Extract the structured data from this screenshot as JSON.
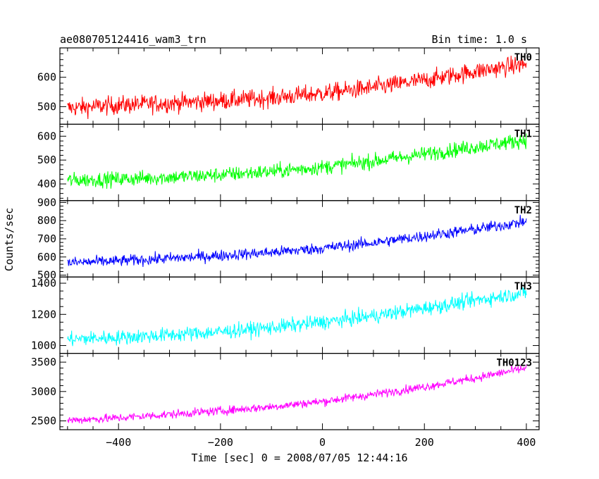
{
  "header": {
    "left": "ae080705124416_wam3_trn",
    "right": "Bin time: 1.0 s"
  },
  "colors": {
    "TH0": "#ff0000",
    "TH1": "#00ff00",
    "TH2": "#0000ff",
    "TH3": "#00ffff",
    "TH0123": "#ff00ff"
  },
  "chart_data": {
    "type": "line",
    "title": "ae080705124416_wam3_trn",
    "subtitle": "Bin time: 1.0 s",
    "xlabel": "Time [sec] 0 = 2008/07/05 12:44:16",
    "ylabel": "Counts/sec",
    "xlim": [
      -515,
      425
    ],
    "x_range": [
      -500,
      400
    ],
    "bin_time": 1.0,
    "xticks": [
      -400,
      -200,
      0,
      200,
      400
    ],
    "xtick_labels": [
      "−400",
      "−200",
      "0",
      "200",
      "400"
    ],
    "grid": false,
    "panels": [
      {
        "name": "TH0",
        "color": "#ff0000",
        "ylim": [
          440,
          700
        ],
        "yticks": [
          500,
          600
        ],
        "x": [
          -500,
          -400,
          -300,
          -200,
          -100,
          0,
          100,
          200,
          300,
          400
        ],
        "y": [
          495,
          505,
          512,
          520,
          530,
          545,
          565,
          590,
          620,
          645
        ],
        "noise": 30
      },
      {
        "name": "TH1",
        "color": "#00ff00",
        "ylim": [
          330,
          650
        ],
        "yticks": [
          400,
          500,
          600
        ],
        "x": [
          -500,
          -400,
          -300,
          -200,
          -100,
          0,
          100,
          200,
          300,
          400
        ],
        "y": [
          415,
          420,
          428,
          438,
          452,
          470,
          495,
          525,
          555,
          585
        ],
        "noise": 30
      },
      {
        "name": "TH2",
        "color": "#0000ff",
        "ylim": [
          490,
          910
        ],
        "yticks": [
          500,
          600,
          700,
          800,
          900
        ],
        "x": [
          -500,
          -400,
          -300,
          -200,
          -100,
          0,
          100,
          200,
          300,
          400
        ],
        "y": [
          568,
          578,
          592,
          608,
          625,
          648,
          678,
          715,
          752,
          795
        ],
        "noise": 30
      },
      {
        "name": "TH3",
        "color": "#00ffff",
        "ylim": [
          950,
          1440
        ],
        "yticks": [
          1000,
          1200,
          1400
        ],
        "x": [
          -500,
          -400,
          -300,
          -200,
          -100,
          0,
          100,
          200,
          300,
          400
        ],
        "y": [
          1040,
          1052,
          1068,
          1088,
          1115,
          1150,
          1190,
          1240,
          1290,
          1340
        ],
        "noise": 45
      },
      {
        "name": "TH0123",
        "color": "#ff00ff",
        "ylim": [
          2350,
          3650
        ],
        "yticks": [
          2500,
          3000,
          3500
        ],
        "x": [
          -500,
          -400,
          -300,
          -200,
          -100,
          0,
          100,
          200,
          300,
          400
        ],
        "y": [
          2510,
          2550,
          2610,
          2670,
          2740,
          2830,
          2950,
          3080,
          3230,
          3400
        ],
        "noise": 70
      }
    ]
  }
}
